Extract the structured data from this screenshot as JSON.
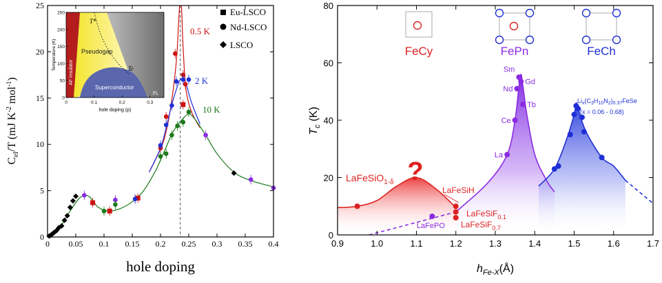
{
  "chart_data": [
    {
      "type": "scatter",
      "xlabel": "hole doping",
      "ylabel": "C",
      "ylabel_sub": "el",
      "ylabel_rest": "/T (mJ K",
      "ylabel_exp1": "-2",
      "ylabel_mid": " mol",
      "ylabel_exp2": "-1",
      "ylabel_end": ")",
      "xlim": [
        0,
        0.4
      ],
      "ylim": [
        0,
        25
      ],
      "xticks": [
        "0",
        "0.05",
        "0.1",
        "0.15",
        "0.2",
        "0.25",
        "0.3",
        "0.35",
        "0.4"
      ],
      "yticks": [
        "0",
        "5",
        "10",
        "15",
        "20",
        "25"
      ],
      "legend_position": "top-right",
      "legend": [
        "Eu-LSCO",
        "Nd-LSCO",
        "LSCO"
      ],
      "temperature_labels": [
        {
          "text": "0.5 K",
          "color": "#cc1111"
        },
        {
          "text": "2 K",
          "color": "#1f2fd6"
        },
        {
          "text": "10 K",
          "color": "#1a7a1a"
        }
      ],
      "vline_x": 0.235,
      "series": [
        {
          "name": "LSCO",
          "marker": "diamond",
          "color": "#000000",
          "points": [
            [
              0.003,
              0.1
            ],
            [
              0.006,
              0.2
            ],
            [
              0.009,
              0.35
            ],
            [
              0.012,
              0.5
            ],
            [
              0.016,
              0.7
            ],
            [
              0.02,
              1.0
            ],
            [
              0.025,
              1.2
            ],
            [
              0.03,
              1.8
            ],
            [
              0.035,
              2.3
            ],
            [
              0.04,
              3.2
            ],
            [
              0.045,
              3.9
            ],
            [
              0.05,
              4.4
            ],
            [
              0.33,
              6.9
            ]
          ]
        },
        {
          "name": "Eu-LSCO",
          "marker": "square",
          "color": "#cc1111",
          "points": [
            [
              0.08,
              3.7
            ],
            [
              0.11,
              2.8
            ],
            [
              0.16,
              4.2
            ],
            [
              0.24,
              14.3
            ]
          ]
        },
        {
          "name": "Nd-LSCO",
          "marker": "circle",
          "color": "#8a2be2",
          "points": [
            [
              0.065,
              4.5
            ],
            [
              0.12,
              4.0
            ],
            [
              0.28,
              11.0
            ],
            [
              0.36,
              6.2
            ],
            [
              0.4,
              5.3
            ]
          ]
        },
        {
          "name": "0.5 K",
          "marker": "circle",
          "color": "#cc1111",
          "points": [
            [
              0.2,
              9.6
            ],
            [
              0.21,
              13.0
            ],
            [
              0.226,
              19.8
            ],
            [
              0.24,
              17.5
            ],
            [
              0.244,
              16.5
            ]
          ]
        },
        {
          "name": "2 K",
          "marker": "circle",
          "color": "#1f2fd6",
          "points": [
            [
              0.155,
              4.1
            ],
            [
              0.2,
              9.9
            ],
            [
              0.21,
              12.1
            ],
            [
              0.22,
              14.2
            ],
            [
              0.228,
              16.8
            ],
            [
              0.24,
              17.0
            ],
            [
              0.25,
              17.0
            ]
          ]
        },
        {
          "name": "10 K",
          "marker": "circle",
          "color": "#1a7a1a",
          "points": [
            [
              0.1,
              2.8
            ],
            [
              0.12,
              3.5
            ],
            [
              0.2,
              8.7
            ],
            [
              0.21,
              9.0
            ],
            [
              0.22,
              11.0
            ],
            [
              0.23,
              12.0
            ],
            [
              0.24,
              12.4
            ],
            [
              0.25,
              13.5
            ]
          ]
        }
      ],
      "curves": [
        {
          "name": "0.5 K",
          "color": "#cc1111",
          "points": [
            [
              0.18,
              7.0
            ],
            [
              0.2,
              9.5
            ],
            [
              0.21,
              11.4
            ],
            [
              0.22,
              14.8
            ],
            [
              0.228,
              19.0
            ],
            [
              0.232,
              23.0
            ],
            [
              0.234,
              25.0
            ],
            [
              0.237,
              25.0
            ],
            [
              0.24,
              20.5
            ],
            [
              0.245,
              16.0
            ],
            [
              0.255,
              13.5
            ],
            [
              0.27,
              11.8
            ]
          ]
        },
        {
          "name": "2 K",
          "color": "#1f2fd6",
          "points": [
            [
              0.18,
              7.0
            ],
            [
              0.2,
              9.6
            ],
            [
              0.21,
              11.8
            ],
            [
              0.22,
              14.3
            ],
            [
              0.23,
              16.3
            ],
            [
              0.235,
              17.0
            ],
            [
              0.24,
              17.0
            ],
            [
              0.245,
              16.6
            ],
            [
              0.255,
              14.5
            ],
            [
              0.27,
              12.2
            ]
          ]
        },
        {
          "name": "10 K",
          "color": "#1a7a1a",
          "points": [
            [
              0,
              0
            ],
            [
              0.02,
              0.9
            ],
            [
              0.04,
              2.8
            ],
            [
              0.055,
              4.1
            ],
            [
              0.065,
              4.5
            ],
            [
              0.075,
              4.3
            ],
            [
              0.09,
              3.2
            ],
            [
              0.11,
              2.8
            ],
            [
              0.13,
              3.1
            ],
            [
              0.15,
              3.8
            ],
            [
              0.17,
              5.0
            ],
            [
              0.19,
              7.0
            ],
            [
              0.2,
              8.3
            ],
            [
              0.21,
              9.7
            ],
            [
              0.22,
              11.1
            ],
            [
              0.23,
              12.1
            ],
            [
              0.24,
              12.8
            ],
            [
              0.25,
              13.3
            ],
            [
              0.26,
              12.8
            ],
            [
              0.28,
              11.0
            ],
            [
              0.3,
              9.0
            ],
            [
              0.33,
              7.0
            ],
            [
              0.36,
              6.1
            ],
            [
              0.4,
              5.4
            ]
          ]
        }
      ],
      "inset": {
        "xlabel": "hole doping (p)",
        "ylabel": "Temperature (K)",
        "xticks": [
          "0",
          "0.1",
          "0.2",
          "0.3"
        ],
        "yticks": [
          "0",
          "50",
          "100",
          "150",
          "200",
          "250"
        ],
        "xlim": [
          0,
          0.35
        ],
        "ylim": [
          0,
          250
        ],
        "regions": [
          "AF insulator",
          "Pseudogap",
          "Superconductor",
          "FL"
        ],
        "labels": [
          "T*",
          "Tc"
        ]
      }
    },
    {
      "type": "scatter",
      "xlabel": "h",
      "xlabel_sub": "Fe-X",
      "xlabel_unit": "(Å)",
      "ylabel": "T",
      "ylabel_sub": "c",
      "ylabel_unit": " (K)",
      "xlim": [
        0.9,
        1.7
      ],
      "ylim": [
        0,
        80
      ],
      "xticks": [
        "0.9",
        "1.0",
        "1.1",
        "1.2",
        "1.3",
        "1.4",
        "1.5",
        "1.6",
        "1.7"
      ],
      "yticks": [
        "0",
        "20",
        "40",
        "60",
        "80"
      ],
      "groups": [
        {
          "name": "FeCy",
          "color": "#dd2222"
        },
        {
          "name": "FePn",
          "color": "#8a2be2"
        },
        {
          "name": "FeCh",
          "color": "#1f2fd6"
        }
      ],
      "question_mark": "?",
      "labels": {
        "lafesio": "LaFeSiO",
        "lafesio_sub": "1-δ",
        "lafesih": "LaFeSiH",
        "lafesif01": "LaFeSiF",
        "lafesif01_sub": "0.1",
        "lafesif07": "LaFeSiF",
        "lafesif07_sub": "0.7",
        "lafepo": "LaFePO",
        "fese_line1a": "Li",
        "fese_line1b": "x",
        "fese_line1c": "(C",
        "fese_line1d": "3",
        "fese_line1e": "H",
        "fese_line1f": "10",
        "fese_line1g": "N",
        "fese_line1h": "2",
        "fese_line1i": ")",
        "fese_line1j": "0.37",
        "fese_line1k": "FeSe",
        "fese_line2": "(x = 0.06 - 0.68)"
      },
      "series": [
        {
          "name": "FeCy",
          "color": "#dd2222",
          "points": [
            [
              0.95,
              10,
              ""
            ],
            [
              1.2,
              10,
              ""
            ],
            [
              1.2,
              8,
              ""
            ],
            [
              1.2,
              6,
              ""
            ]
          ]
        },
        {
          "name": "FePn",
          "color": "#8a2be2",
          "points": [
            [
              1.14,
              6.5,
              "LaFePO"
            ],
            [
              1.33,
              28,
              "La"
            ],
            [
              1.35,
              40,
              "Ce"
            ],
            [
              1.355,
              51,
              "Nd"
            ],
            [
              1.36,
              55,
              "Sm"
            ],
            [
              1.365,
              53.5,
              "Gd"
            ],
            [
              1.37,
              45.5,
              "Tb"
            ]
          ]
        },
        {
          "name": "FeCh",
          "color": "#1f2fd6",
          "points": [
            [
              1.45,
              23
            ],
            [
              1.46,
              24
            ],
            [
              1.49,
              35
            ],
            [
              1.5,
              42
            ],
            [
              1.505,
              45
            ],
            [
              1.51,
              44
            ],
            [
              1.52,
              41
            ],
            [
              1.525,
              36
            ],
            [
              1.57,
              27
            ]
          ]
        }
      ]
    }
  ]
}
